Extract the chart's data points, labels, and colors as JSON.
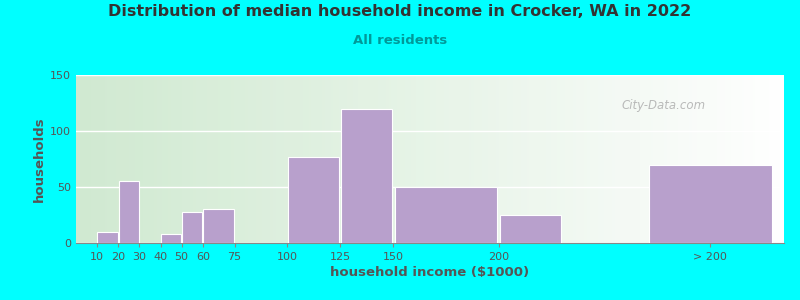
{
  "title": "Distribution of median household income in Crocker, WA in 2022",
  "subtitle": "All residents",
  "xlabel": "household income ($1000)",
  "ylabel": "households",
  "bar_color": "#b8a0cc",
  "background_outer": "#00ffff",
  "title_color": "#333333",
  "subtitle_color": "#009999",
  "axis_text_color": "#555555",
  "watermark": "City-Data.com",
  "ylim": [
    0,
    150
  ],
  "yticks": [
    0,
    50,
    100,
    150
  ],
  "bar_data": [
    [
      10,
      20,
      10
    ],
    [
      20,
      30,
      55
    ],
    [
      40,
      50,
      8
    ],
    [
      50,
      60,
      28
    ],
    [
      60,
      75,
      30
    ],
    [
      100,
      125,
      77
    ],
    [
      125,
      150,
      120
    ],
    [
      150,
      200,
      50
    ],
    [
      200,
      230,
      25
    ],
    [
      270,
      330,
      70
    ]
  ],
  "xtick_positions": [
    10,
    20,
    30,
    40,
    50,
    60,
    75,
    100,
    125,
    150,
    200,
    300
  ],
  "xtick_labels": [
    "10",
    "20",
    "30",
    "40",
    "50",
    "60",
    "75",
    "100",
    "125",
    "150",
    "200",
    "> 200"
  ],
  "xlim": [
    0,
    335
  ]
}
